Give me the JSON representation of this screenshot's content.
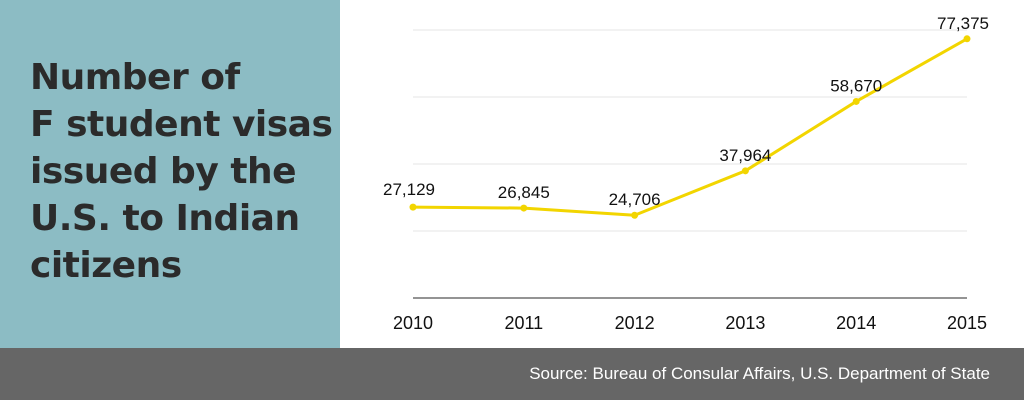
{
  "title_lines": [
    "Number of",
    "F student visas",
    "issued by the",
    "U.S. to Indian",
    "citizens"
  ],
  "source": "Source: Bureau of Consular Affairs, U.S. Department of State",
  "colors": {
    "panel": "#8cbcc4",
    "line": "#f2d500",
    "footer": "#666666",
    "title": "#2b2b2b"
  },
  "chart_data": {
    "type": "line",
    "title": "Number of F student visas issued by the U.S. to Indian citizens",
    "xlabel": "",
    "ylabel": "",
    "categories": [
      "2010",
      "2011",
      "2012",
      "2013",
      "2014",
      "2015"
    ],
    "values": [
      27129,
      26845,
      24706,
      37964,
      58670,
      77375
    ],
    "data_labels": [
      "27,129",
      "26,845",
      "24,706",
      "37,964",
      "58,670",
      "77,375"
    ],
    "ylim": [
      0,
      80000
    ],
    "grid": true,
    "legend": "none"
  }
}
